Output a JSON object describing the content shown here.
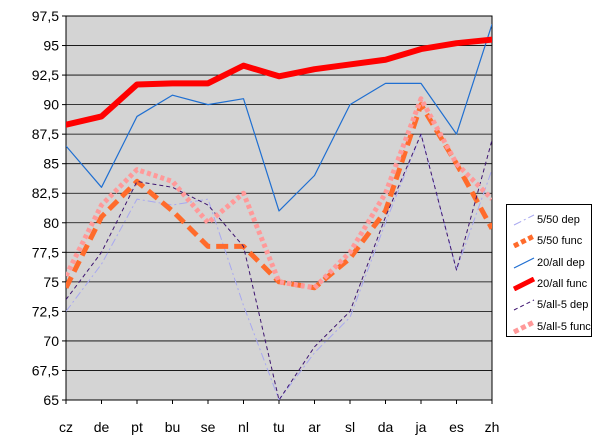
{
  "chart_data": {
    "type": "line",
    "categories": [
      "cz",
      "de",
      "pt",
      "bu",
      "se",
      "nl",
      "tu",
      "ar",
      "sl",
      "da",
      "ja",
      "es",
      "zh"
    ],
    "ylim": [
      65,
      97.5
    ],
    "ytick_labels": [
      "65",
      "67,5",
      "70",
      "72,5",
      "75",
      "77,5",
      "80",
      "82,5",
      "85",
      "87,5",
      "90",
      "92,5",
      "95",
      "97,5"
    ],
    "grid": true,
    "legend_position": "right",
    "series": [
      {
        "name": "5/50 dep",
        "color": "#a8a8f0",
        "style": "dashdot-thin",
        "values": [
          72.5,
          76.5,
          82.0,
          81.5,
          82.0,
          73.0,
          65.0,
          69.0,
          72.0,
          80.0,
          87.5,
          76.0,
          84.5
        ]
      },
      {
        "name": "5/50 func",
        "color": "#ff6b2b",
        "style": "dashed-thick",
        "values": [
          74.5,
          80.5,
          83.5,
          81.0,
          78.0,
          78.0,
          75.0,
          74.5,
          77.0,
          81.0,
          90.0,
          85.0,
          79.5
        ]
      },
      {
        "name": "20/all dep",
        "color": "#1f6fd1",
        "style": "solid-thin",
        "values": [
          86.5,
          83.0,
          89.0,
          90.8,
          90.0,
          90.5,
          81.0,
          84.0,
          90.0,
          91.8,
          91.8,
          87.5,
          96.8
        ]
      },
      {
        "name": "20/all func",
        "color": "#ff0000",
        "style": "solid-thick",
        "values": [
          88.3,
          89.0,
          91.7,
          91.8,
          91.8,
          93.3,
          92.4,
          93.0,
          93.4,
          93.8,
          94.7,
          95.2,
          95.5
        ]
      },
      {
        "name": "5/all-5 dep",
        "color": "#3d1470",
        "style": "dashed-thin",
        "values": [
          73.5,
          77.5,
          83.5,
          83.0,
          81.5,
          78.0,
          65.0,
          69.5,
          72.5,
          80.5,
          87.5,
          76.0,
          87.0
        ]
      },
      {
        "name": "5/all-5 func",
        "color": "#ff9999",
        "style": "dotted-thick",
        "values": [
          75.5,
          81.5,
          84.5,
          83.5,
          80.0,
          82.5,
          75.0,
          74.5,
          77.5,
          82.5,
          90.5,
          85.0,
          82.0
        ]
      }
    ]
  }
}
